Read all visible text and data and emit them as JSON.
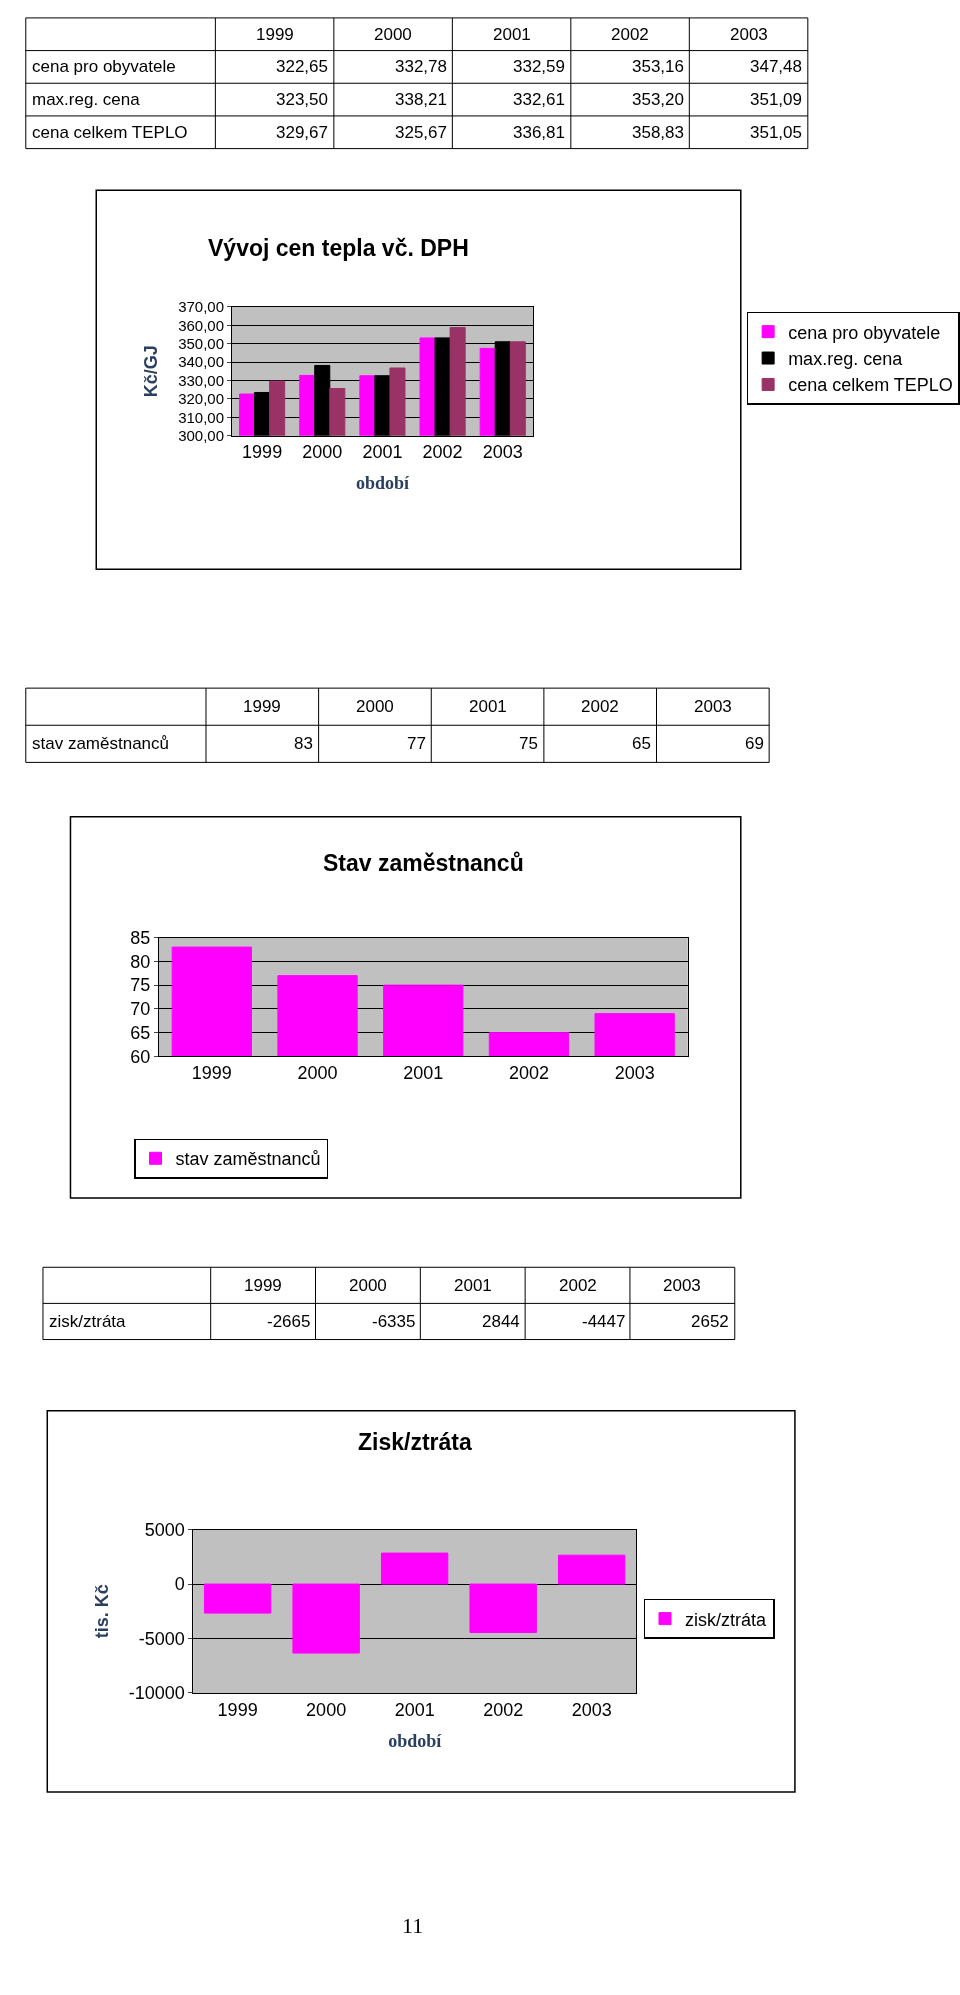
{
  "chart_data": [
    {
      "type": "bar",
      "title": "Vývoj cen tepla vč. DPH",
      "xlabel": "období",
      "ylabel": "Kč/GJ",
      "categories": [
        "1999",
        "2000",
        "2001",
        "2002",
        "2003"
      ],
      "series": [
        {
          "name": "cena pro obyvatele",
          "color": "#ff00ff",
          "values": [
            322.65,
            332.78,
            332.59,
            353.16,
            347.48
          ]
        },
        {
          "name": "max.reg. cena",
          "color": "#000000",
          "values": [
            323.5,
            338.21,
            332.61,
            353.2,
            351.09
          ]
        },
        {
          "name": "cena celkem TEPLO",
          "color": "#993366",
          "values": [
            329.67,
            325.67,
            336.81,
            358.83,
            351.05
          ]
        }
      ],
      "ylim": [
        300,
        370
      ],
      "yticks": [
        {
          "value": 300,
          "label": "300,00"
        },
        {
          "value": 310,
          "label": "310,00"
        },
        {
          "value": 320,
          "label": "320,00"
        },
        {
          "value": 330,
          "label": "330,00"
        },
        {
          "value": 340,
          "label": "340,00"
        },
        {
          "value": 350,
          "label": "350,00"
        },
        {
          "value": 360,
          "label": "360,00"
        },
        {
          "value": 370,
          "label": "370,00"
        }
      ],
      "grid": "y",
      "legend": "right",
      "value_labels": [
        [
          "322,65",
          "332,78",
          "332,59",
          "353,16",
          "347,48"
        ],
        [
          "323,50",
          "338,21",
          "332,61",
          "353,20",
          "351,09"
        ],
        [
          "329,67",
          "325,67",
          "336,81",
          "358,83",
          "351,05"
        ]
      ]
    },
    {
      "type": "bar",
      "title": "Stav zaměstnanců",
      "categories": [
        "1999",
        "2000",
        "2001",
        "2002",
        "2003"
      ],
      "series": [
        {
          "name": "stav zaměstnanců",
          "color": "#ff00ff",
          "values": [
            83,
            77,
            75,
            65,
            69
          ]
        }
      ],
      "ylim": [
        60,
        85
      ],
      "yticks": [
        60,
        65,
        70,
        75,
        80,
        85
      ],
      "grid": "y",
      "legend": "bottom",
      "value_labels": [
        [
          "83",
          "77",
          "75",
          "65",
          "69"
        ]
      ]
    },
    {
      "type": "bar",
      "title": "Zisk/ztráta",
      "xlabel": "období",
      "ylabel": "tis. Kč",
      "categories": [
        "1999",
        "2000",
        "2001",
        "2002",
        "2003"
      ],
      "series": [
        {
          "name": "zisk/ztráta",
          "color": "#ff00ff",
          "values": [
            -2665,
            -6335,
            2844,
            -4447,
            2652
          ]
        }
      ],
      "ylim": [
        -10000,
        5000
      ],
      "yticks": [
        -10000,
        -5000,
        0,
        5000
      ],
      "grid": "y",
      "legend": "right",
      "value_labels": [
        [
          "-2665",
          "-6335",
          "2844",
          "-4447",
          "2652"
        ]
      ],
      "annotations": [
        "11"
      ]
    }
  ]
}
